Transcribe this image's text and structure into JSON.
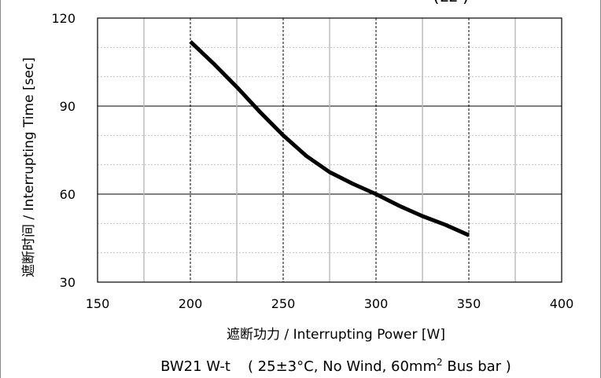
{
  "chart_data": {
    "type": "line",
    "xlabel": "遮断功力 / Interrupting Power [W]",
    "ylabel": "遮断时间 / Interrupting Time [sec]",
    "xlim": [
      150,
      400
    ],
    "ylim": [
      30,
      120
    ],
    "x_ticks": [
      "150",
      "200",
      "250",
      "300",
      "350",
      "400"
    ],
    "y_ticks": [
      "30",
      "60",
      "90",
      "120"
    ],
    "grid": true,
    "series": [
      {
        "x": [
          200,
          212.5,
          225,
          237.5,
          250,
          262.5,
          275,
          287.5,
          300,
          312.5,
          325,
          337.5,
          350
        ],
        "y": [
          112,
          104.5,
          96.5,
          88,
          80,
          73,
          67.5,
          63.5,
          60,
          56,
          52.5,
          49.5,
          46
        ]
      }
    ]
  },
  "caption": {
    "model": "BW21 W-t",
    "conditions_prefix": "( 25±3°C, No Wind, 60mm",
    "conditions_sup": "2",
    "conditions_suffix": " Bus bar )"
  },
  "corner_fragment": "(ʟ̅ʟ̅   )"
}
